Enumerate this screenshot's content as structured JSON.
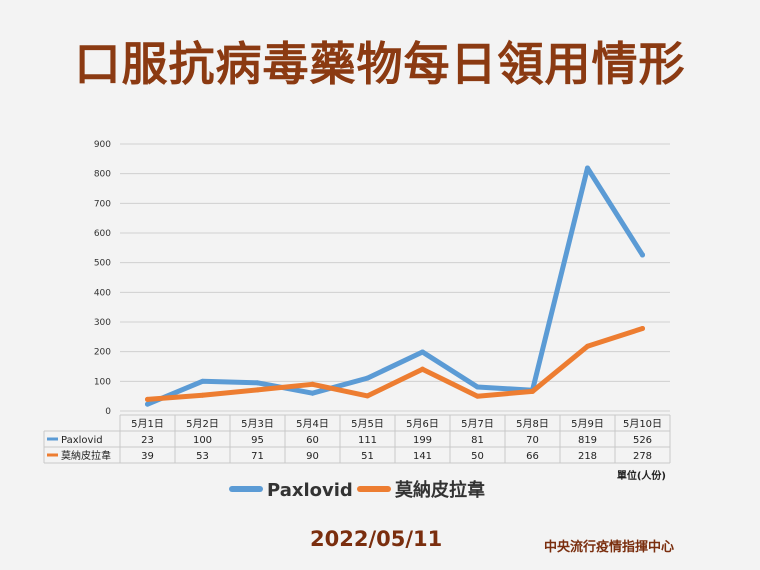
{
  "title": "口服抗病毒藥物每日領用情形",
  "date": "2022/05/11",
  "organization": "中央流行疫情指揮中心",
  "unit_label": "單位(人份)",
  "chart_data": {
    "type": "line",
    "categories": [
      "5月1日",
      "5月2日",
      "5月3日",
      "5月4日",
      "5月5日",
      "5月6日",
      "5月7日",
      "5月8日",
      "5月9日",
      "5月10日"
    ],
    "series": [
      {
        "name": "Paxlovid",
        "color": "#5b9bd5",
        "values": [
          23,
          100,
          95,
          60,
          111,
          199,
          81,
          70,
          819,
          526
        ]
      },
      {
        "name": "莫納皮拉韋",
        "color": "#ed7d31",
        "values": [
          39,
          53,
          71,
          90,
          51,
          141,
          50,
          66,
          218,
          278
        ]
      }
    ],
    "yticks": [
      0,
      100,
      200,
      300,
      400,
      500,
      600,
      700,
      800,
      900
    ],
    "ylim": [
      0,
      900
    ],
    "grid": true,
    "legend": "bottom",
    "data_table": true
  }
}
